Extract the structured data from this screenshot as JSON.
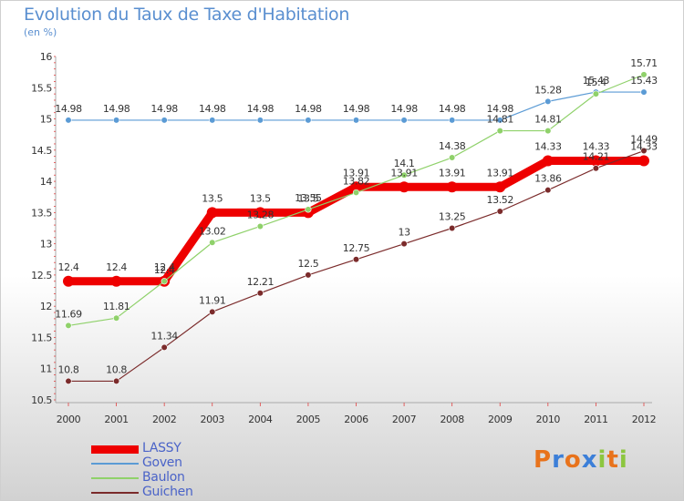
{
  "header": {
    "title": "Evolution du Taux de Taxe d'Habitation",
    "subtitle": "(en %)"
  },
  "logo": {
    "letters": [
      "P",
      "r",
      "o",
      "x",
      "i",
      "t",
      "i"
    ],
    "colors": [
      "#e8731c",
      "#3c7fd8",
      "#e8731c",
      "#3c7fd8",
      "#8cc63f",
      "#e8731c",
      "#8cc63f"
    ]
  },
  "chart_data": {
    "type": "line",
    "title": "Evolution du Taux de Taxe d'Habitation",
    "ylabel": "(en %)",
    "xlabel": "",
    "x": [
      "2000",
      "2001",
      "2002",
      "2003",
      "2004",
      "2005",
      "2006",
      "2007",
      "2008",
      "2009",
      "2010",
      "2011",
      "2012"
    ],
    "ylim": [
      10.5,
      16
    ],
    "yticks": [
      "10.5",
      "11",
      "11.5",
      "12",
      "12.5",
      "13",
      "13.5",
      "14",
      "14.5",
      "15",
      "15.5",
      "16"
    ],
    "grid": false,
    "legend_position": "bottom-left",
    "series": [
      {
        "name": "LASSY",
        "color": "#ee0000",
        "width": 9,
        "marker": 6,
        "values": [
          12.4,
          12.4,
          12.4,
          13.5,
          13.5,
          13.5,
          13.91,
          13.91,
          13.91,
          13.91,
          14.33,
          14.33,
          14.33
        ],
        "labels": [
          "12.4",
          "12.4",
          "12.4",
          "13.5",
          "13.5",
          "13.5",
          "13.91",
          "13.91",
          "13.91",
          "13.91",
          "14.33",
          "14.33",
          "14.33"
        ]
      },
      {
        "name": "Goven",
        "color": "#5b9bd5",
        "width": 1.2,
        "marker": 3.3,
        "values": [
          14.98,
          14.98,
          14.98,
          14.98,
          14.98,
          14.98,
          14.98,
          14.98,
          14.98,
          14.98,
          15.28,
          15.43,
          15.43
        ],
        "labels": [
          "14.98",
          "14.98",
          "14.98",
          "14.98",
          "14.98",
          "14.98",
          "14.98",
          "14.98",
          "14.98",
          "14.98",
          "15.28",
          "15.43",
          "15.43"
        ]
      },
      {
        "name": "Baulon",
        "color": "#8fd16a",
        "width": 1.2,
        "marker": 3.3,
        "values": [
          11.69,
          11.81,
          12.4,
          13.02,
          13.28,
          13.55,
          13.82,
          14.1,
          14.38,
          14.81,
          14.81,
          15.4,
          15.71
        ],
        "labels": [
          "11.69",
          "11.81",
          "12.4",
          "13.02",
          "13.28",
          "13.55",
          "13.82",
          "14.1",
          "14.38",
          "14.81",
          "14.81",
          "15.4",
          "15.71"
        ]
      },
      {
        "name": "Guichen",
        "color": "#7b2b2b",
        "width": 1.2,
        "marker": 3.3,
        "values": [
          10.8,
          10.8,
          11.34,
          11.91,
          12.21,
          12.5,
          12.75,
          13,
          13.25,
          13.52,
          13.86,
          14.21,
          14.49
        ],
        "labels": [
          "10.8",
          "10.8",
          "11.34",
          "11.91",
          "12.21",
          "12.5",
          "12.75",
          "13",
          "13.25",
          "13.52",
          "13.86",
          "14.21",
          "14.49"
        ]
      }
    ]
  }
}
